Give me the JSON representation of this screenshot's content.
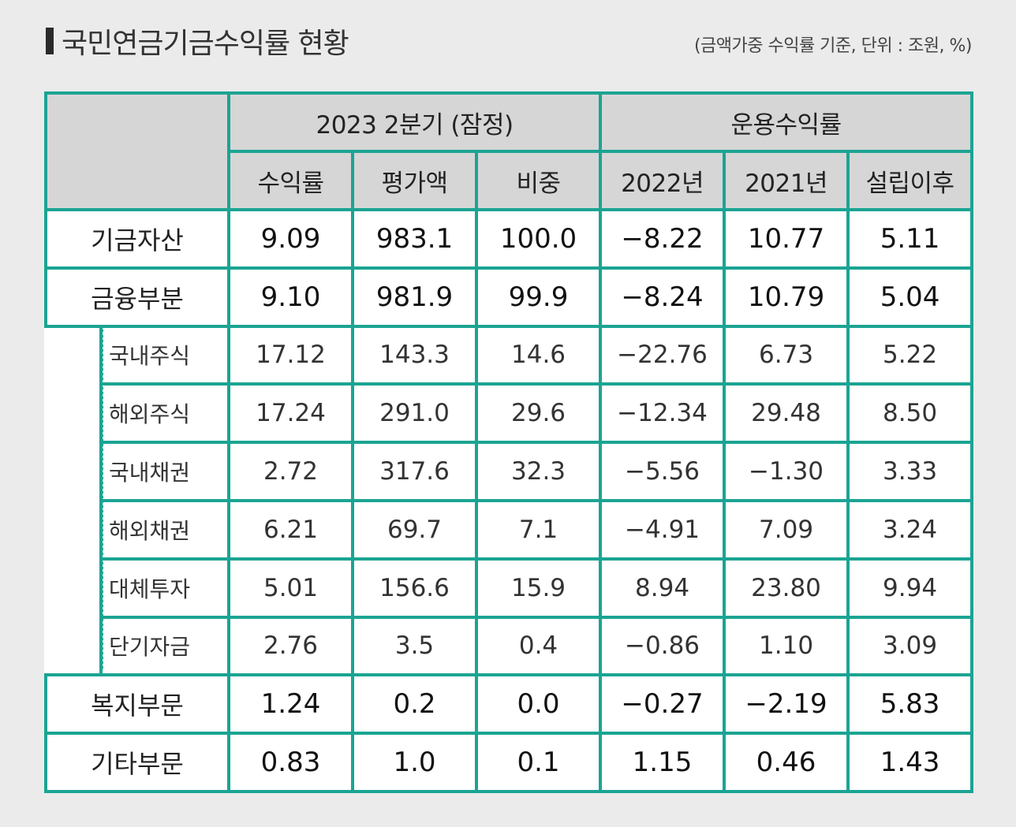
{
  "header": {
    "title": "국민연금기금수익률 현황",
    "subtitle": "(금액가중 수익률 기준, 단위 : 조원, %)"
  },
  "table": {
    "group_headers": [
      "2023  2분기 (잠정)",
      "운용수익률"
    ],
    "columns": [
      "수익률",
      "평가액",
      "비중",
      "2022년",
      "2021년",
      "설립이후"
    ],
    "rows": [
      {
        "label": "기금자산",
        "values": [
          "9.09",
          "983.1",
          "100.0",
          "−8.22",
          "10.77",
          "5.11"
        ]
      },
      {
        "label": "금융부분",
        "values": [
          "9.10",
          "981.9",
          "99.9",
          "−8.24",
          "10.79",
          "5.04"
        ]
      },
      {
        "label": "국내주식",
        "values": [
          "17.12",
          "143.3",
          "14.6",
          "−22.76",
          "6.73",
          "5.22"
        ]
      },
      {
        "label": "해외주식",
        "values": [
          "17.24",
          "291.0",
          "29.6",
          "−12.34",
          "29.48",
          "8.50"
        ]
      },
      {
        "label": "국내채권",
        "values": [
          "2.72",
          "317.6",
          "32.3",
          "−5.56",
          "−1.30",
          "3.33"
        ]
      },
      {
        "label": "해외채권",
        "values": [
          "6.21",
          "69.7",
          "7.1",
          "−4.91",
          "7.09",
          "3.24"
        ]
      },
      {
        "label": "대체투자",
        "values": [
          "5.01",
          "156.6",
          "15.9",
          "8.94",
          "23.80",
          "9.94"
        ]
      },
      {
        "label": "단기자금",
        "values": [
          "2.76",
          "3.5",
          "0.4",
          "−0.86",
          "1.10",
          "3.09"
        ]
      },
      {
        "label": "복지부문",
        "values": [
          "1.24",
          "0.2",
          "0.0",
          "−0.27",
          "−2.19",
          "5.83"
        ]
      },
      {
        "label": "기타부문",
        "values": [
          "0.83",
          "1.0",
          "0.1",
          "1.15",
          "0.46",
          "1.43"
        ]
      }
    ]
  },
  "colors": {
    "border": "#1ba493",
    "header_bg": "#d6d6d6",
    "panel_bg": "#ebebeb"
  }
}
